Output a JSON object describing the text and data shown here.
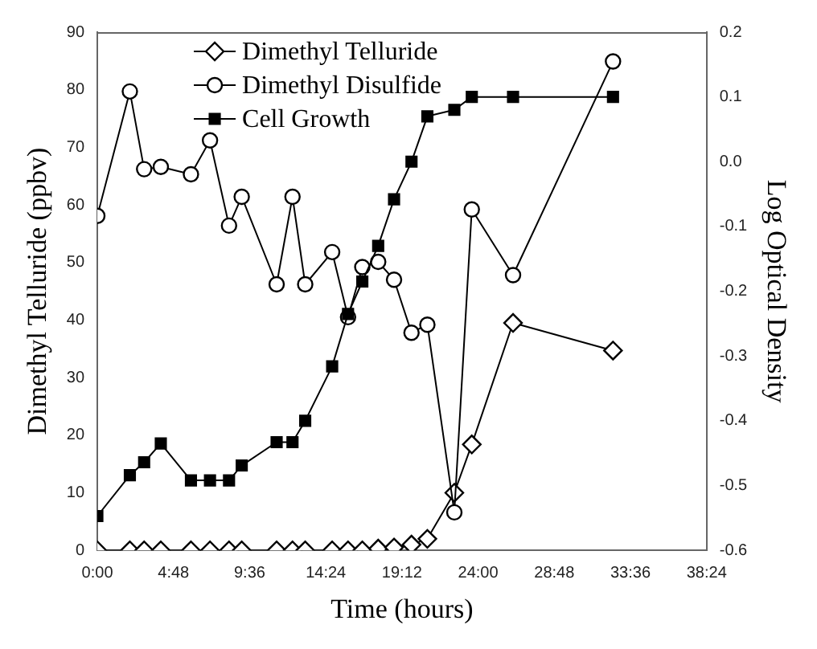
{
  "chart_data": {
    "type": "line",
    "xlabel": "Time (hours)",
    "ylabel": "Dimethyl Telluride (ppbv)",
    "y2label": "Log Optical Density",
    "x": [
      0,
      2.05,
      2.95,
      4.0,
      5.9,
      7.1,
      8.3,
      9.1,
      11.3,
      12.3,
      13.1,
      14.8,
      15.8,
      16.7,
      17.7,
      18.7,
      19.8,
      20.8,
      22.5,
      23.6,
      26.2,
      32.5
    ],
    "series": [
      {
        "name": "Dimethyl Telluride",
        "color": "#000000",
        "marker": "diamond",
        "values": [
          0,
          0,
          0,
          0,
          0,
          0,
          0,
          0,
          0,
          0,
          0,
          0,
          0,
          0,
          0.3,
          0.5,
          1,
          2,
          10,
          18.4,
          39.5,
          34.7
        ]
      },
      {
        "name": "Dimethyl Disulfide",
        "color": "#000000",
        "marker": "circle",
        "values": [
          58.1,
          79.7,
          66.2,
          66.6,
          65.3,
          71.2,
          56.4,
          61.4,
          46.2,
          61.4,
          46.2,
          51.8,
          40.5,
          49.2,
          50.1,
          47.0,
          37.8,
          39.2,
          6.6,
          59.2,
          47.8,
          84.9
        ]
      },
      {
        "name": "Cell Growth",
        "color": "#000000",
        "marker": "square",
        "axis": "y2",
        "values": [
          -0.547,
          -0.484,
          -0.464,
          -0.435,
          -0.492,
          -0.492,
          -0.492,
          -0.469,
          -0.433,
          -0.433,
          -0.4,
          -0.316,
          -0.235,
          -0.185,
          -0.13,
          -0.058,
          0.0,
          0.07,
          0.08,
          0.1,
          0.1,
          0.1
        ]
      }
    ],
    "xlim": [
      0,
      38.4
    ],
    "xticks": [
      {
        "value": 0,
        "label": "0:00"
      },
      {
        "value": 4.8,
        "label": "4:48"
      },
      {
        "value": 9.6,
        "label": "9:36"
      },
      {
        "value": 14.4,
        "label": "14:24"
      },
      {
        "value": 19.2,
        "label": "19:12"
      },
      {
        "value": 24,
        "label": "24:00"
      },
      {
        "value": 28.8,
        "label": "28:48"
      },
      {
        "value": 33.6,
        "label": "33:36"
      },
      {
        "value": 38.4,
        "label": "38:24"
      }
    ],
    "ylim": [
      0,
      90
    ],
    "yticks": [
      0,
      10,
      20,
      30,
      40,
      50,
      60,
      70,
      80,
      90
    ],
    "y2lim": [
      -0.6,
      0.2
    ],
    "y2ticks": [
      -0.6,
      -0.5,
      -0.4,
      -0.3,
      -0.2,
      -0.1,
      {
        "value": 0,
        "label": "0.0"
      },
      0.1,
      0.2
    ],
    "grid": false,
    "legend": "top left",
    "line_style": "solid"
  }
}
